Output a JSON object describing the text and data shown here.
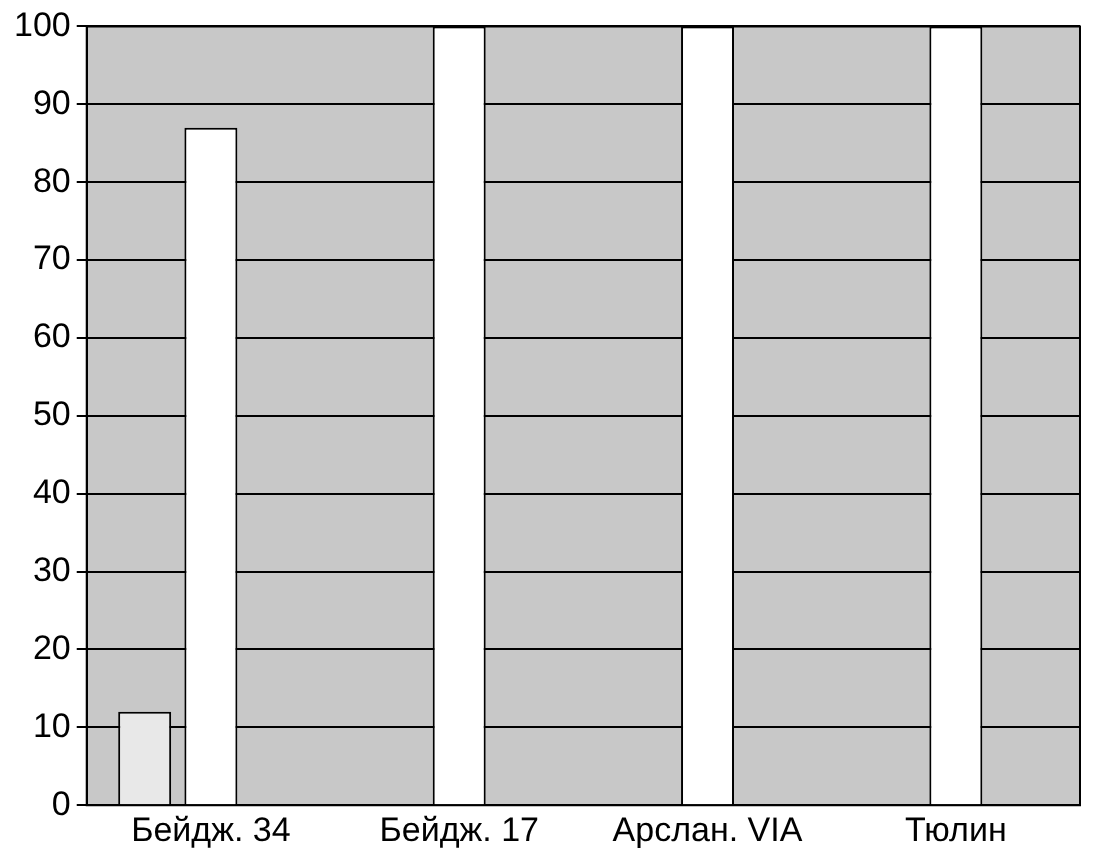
{
  "chart_data": {
    "type": "bar",
    "categories": [
      "Бейдж. 34",
      "Бейдж. 17",
      "Арслан. VIA",
      "Тюлин"
    ],
    "series": [
      {
        "color": "#e8e8e8",
        "values": [
          12,
          0,
          0,
          0
        ]
      },
      {
        "color": "#ffffff",
        "values": [
          87,
          100,
          100,
          100
        ]
      },
      {
        "color": "#f4f4f4",
        "values": [
          0,
          0,
          0,
          0
        ]
      }
    ],
    "ylim": [
      0,
      100
    ],
    "yticks": [
      0,
      10,
      20,
      30,
      40,
      50,
      60,
      70,
      80,
      90,
      100
    ],
    "grid": "y",
    "legend": false
  }
}
